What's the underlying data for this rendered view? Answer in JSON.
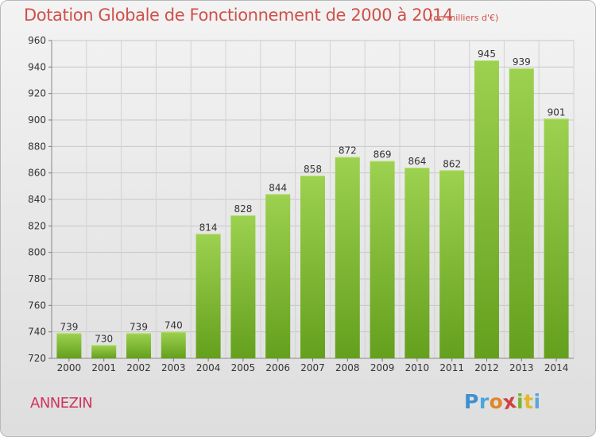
{
  "chart_data": {
    "type": "bar",
    "title": "Dotation Globale de Fonctionnement de 2000 à 2014",
    "subtitle": "(en milliers d'€)",
    "categories": [
      "2000",
      "2001",
      "2002",
      "2003",
      "2004",
      "2005",
      "2006",
      "2007",
      "2008",
      "2009",
      "2010",
      "2011",
      "2012",
      "2013",
      "2014"
    ],
    "values": [
      739,
      730,
      739,
      740,
      814,
      828,
      844,
      858,
      872,
      869,
      864,
      862,
      945,
      939,
      901
    ],
    "ylim": [
      720,
      960
    ],
    "yticks": [
      720,
      740,
      760,
      780,
      800,
      820,
      840,
      860,
      880,
      900,
      920,
      940,
      960
    ],
    "grid": true,
    "xlabel": "",
    "ylabel": "",
    "bar_color_top": "#9dd150",
    "bar_color_bottom": "#64a01d",
    "title_color": "#d0504a"
  },
  "footer": {
    "commune": "ANNEZIN",
    "commune_color": "#d0345f",
    "brand_logo": "Proxiti"
  }
}
